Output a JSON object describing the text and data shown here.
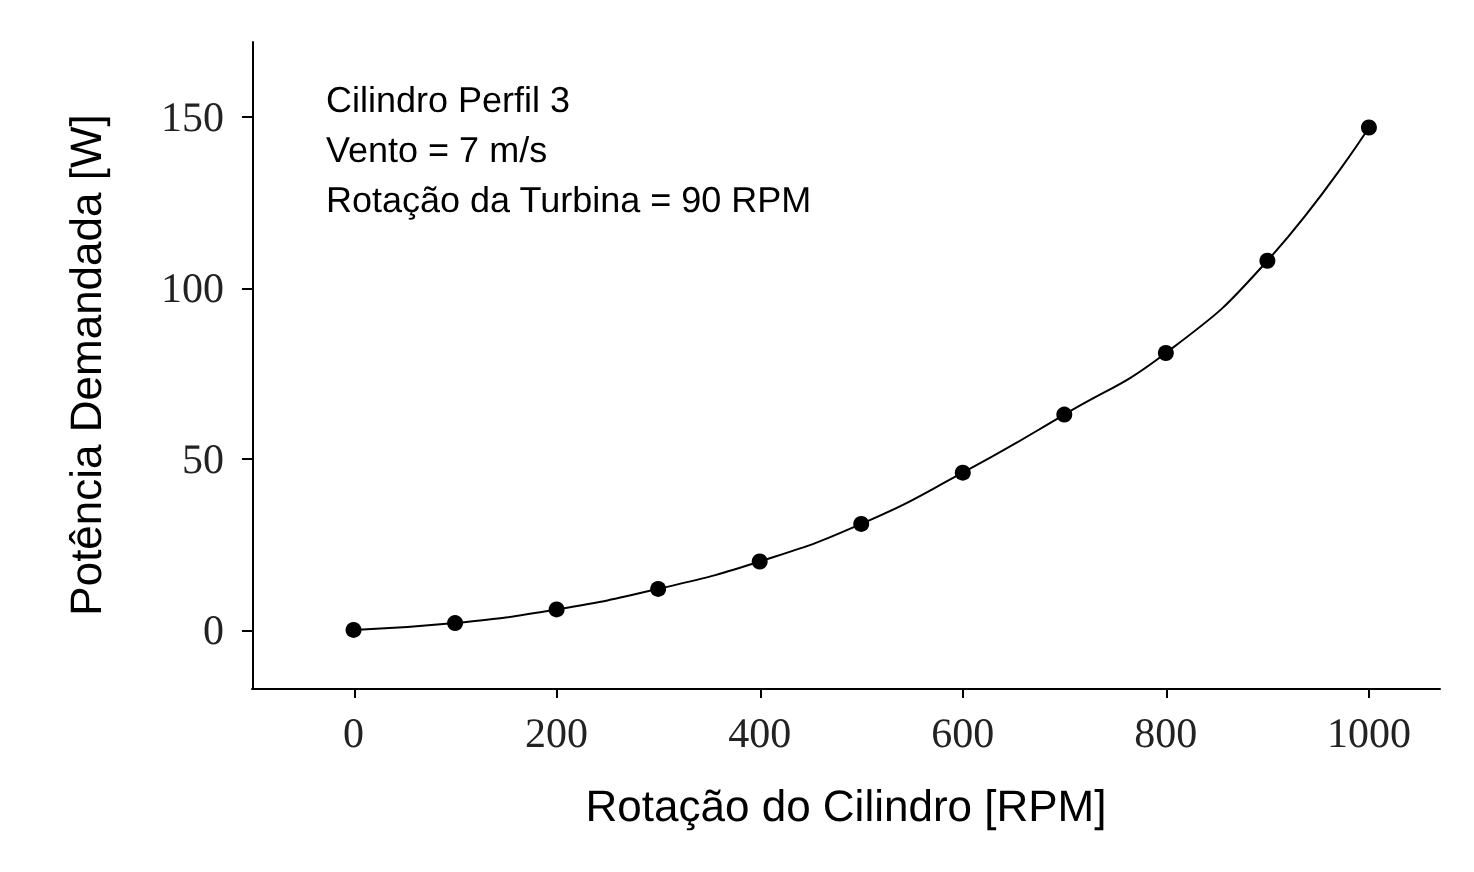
{
  "chart_data": {
    "type": "line",
    "xlabel": "Rotação do Cilindro [RPM]",
    "ylabel": "Potência Demandada [W]",
    "annotations": [
      "Cilindro Perfil 3",
      "Vento = 7 m/s",
      "Rotação da Turbina = 90 RPM"
    ],
    "x": [
      0,
      100,
      200,
      300,
      400,
      500,
      600,
      700,
      800,
      900,
      1000
    ],
    "series": [
      {
        "color": "#000000",
        "values": [
          0,
          2,
          6,
          12,
          20,
          31,
          46,
          63,
          81,
          108,
          147
        ]
      }
    ],
    "xlim": [
      -100,
      1070
    ],
    "ylim": [
      -17,
      172
    ],
    "xticks": [
      0,
      200,
      400,
      600,
      800,
      1000
    ],
    "yticks": [
      0,
      50,
      100,
      150
    ],
    "marker": "circle",
    "line_style": "solid",
    "grid": false
  }
}
